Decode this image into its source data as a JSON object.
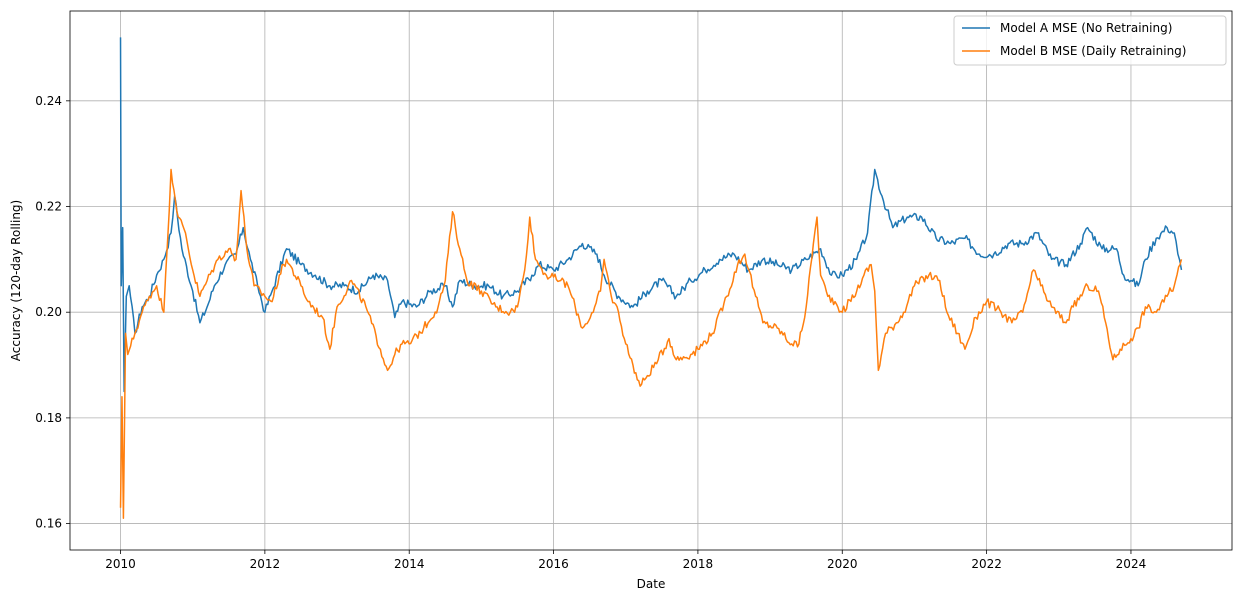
{
  "chart_data": {
    "type": "line",
    "title": "",
    "xlabel": "Date",
    "ylabel": "Accuracy (120-day Rolling)",
    "xlim": [
      2009.3,
      2025.4
    ],
    "ylim": [
      0.155,
      0.257
    ],
    "xticks": [
      "2010",
      "2012",
      "2014",
      "2016",
      "2018",
      "2020",
      "2022",
      "2024"
    ],
    "yticks": [
      "0.16",
      "0.18",
      "0.20",
      "0.22",
      "0.24"
    ],
    "grid": true,
    "legend_position": "top-right",
    "series": [
      {
        "name": "Model A MSE (No Retraining)",
        "color": "#1f77b4",
        "points": [
          [
            2010.0,
            0.252
          ],
          [
            2010.01,
            0.205
          ],
          [
            2010.03,
            0.216
          ],
          [
            2010.05,
            0.185
          ],
          [
            2010.08,
            0.203
          ],
          [
            2010.12,
            0.205
          ],
          [
            2010.2,
            0.196
          ],
          [
            2010.3,
            0.201
          ],
          [
            2010.4,
            0.203
          ],
          [
            2010.5,
            0.207
          ],
          [
            2010.6,
            0.21
          ],
          [
            2010.7,
            0.215
          ],
          [
            2010.75,
            0.222
          ],
          [
            2010.85,
            0.212
          ],
          [
            2011.0,
            0.204
          ],
          [
            2011.1,
            0.198
          ],
          [
            2011.2,
            0.201
          ],
          [
            2011.3,
            0.205
          ],
          [
            2011.45,
            0.209
          ],
          [
            2011.6,
            0.211
          ],
          [
            2011.7,
            0.216
          ],
          [
            2011.8,
            0.21
          ],
          [
            2011.9,
            0.205
          ],
          [
            2012.0,
            0.2
          ],
          [
            2012.1,
            0.204
          ],
          [
            2012.3,
            0.212
          ],
          [
            2012.5,
            0.209
          ],
          [
            2012.7,
            0.207
          ],
          [
            2012.9,
            0.205
          ],
          [
            2013.1,
            0.205
          ],
          [
            2013.3,
            0.204
          ],
          [
            2013.5,
            0.207
          ],
          [
            2013.7,
            0.206
          ],
          [
            2013.8,
            0.199
          ],
          [
            2013.9,
            0.202
          ],
          [
            2014.1,
            0.201
          ],
          [
            2014.3,
            0.204
          ],
          [
            2014.5,
            0.205
          ],
          [
            2014.6,
            0.201
          ],
          [
            2014.7,
            0.206
          ],
          [
            2014.9,
            0.205
          ],
          [
            2015.1,
            0.205
          ],
          [
            2015.3,
            0.203
          ],
          [
            2015.5,
            0.204
          ],
          [
            2015.7,
            0.207
          ],
          [
            2015.8,
            0.209
          ],
          [
            2016.0,
            0.208
          ],
          [
            2016.2,
            0.21
          ],
          [
            2016.4,
            0.213
          ],
          [
            2016.6,
            0.211
          ],
          [
            2016.7,
            0.207
          ],
          [
            2016.9,
            0.203
          ],
          [
            2017.1,
            0.201
          ],
          [
            2017.3,
            0.204
          ],
          [
            2017.5,
            0.206
          ],
          [
            2017.7,
            0.203
          ],
          [
            2017.9,
            0.206
          ],
          [
            2018.1,
            0.208
          ],
          [
            2018.3,
            0.21
          ],
          [
            2018.5,
            0.211
          ],
          [
            2018.7,
            0.208
          ],
          [
            2018.9,
            0.21
          ],
          [
            2019.1,
            0.209
          ],
          [
            2019.3,
            0.208
          ],
          [
            2019.5,
            0.21
          ],
          [
            2019.7,
            0.212
          ],
          [
            2019.85,
            0.207
          ],
          [
            2020.0,
            0.207
          ],
          [
            2020.2,
            0.21
          ],
          [
            2020.35,
            0.215
          ],
          [
            2020.45,
            0.227
          ],
          [
            2020.55,
            0.222
          ],
          [
            2020.7,
            0.216
          ],
          [
            2020.9,
            0.218
          ],
          [
            2021.1,
            0.218
          ],
          [
            2021.3,
            0.214
          ],
          [
            2021.5,
            0.213
          ],
          [
            2021.7,
            0.214
          ],
          [
            2021.9,
            0.211
          ],
          [
            2022.1,
            0.211
          ],
          [
            2022.3,
            0.213
          ],
          [
            2022.5,
            0.213
          ],
          [
            2022.7,
            0.215
          ],
          [
            2022.9,
            0.21
          ],
          [
            2023.1,
            0.209
          ],
          [
            2023.3,
            0.213
          ],
          [
            2023.4,
            0.216
          ],
          [
            2023.6,
            0.212
          ],
          [
            2023.8,
            0.212
          ],
          [
            2023.9,
            0.207
          ],
          [
            2024.0,
            0.206
          ],
          [
            2024.1,
            0.205
          ],
          [
            2024.2,
            0.21
          ],
          [
            2024.35,
            0.214
          ],
          [
            2024.5,
            0.216
          ],
          [
            2024.6,
            0.215
          ],
          [
            2024.65,
            0.211
          ],
          [
            2024.7,
            0.208
          ]
        ]
      },
      {
        "name": "Model B MSE (Daily Retraining)",
        "color": "#ff7f0e",
        "points": [
          [
            2010.0,
            0.163
          ],
          [
            2010.02,
            0.184
          ],
          [
            2010.04,
            0.161
          ],
          [
            2010.07,
            0.196
          ],
          [
            2010.1,
            0.192
          ],
          [
            2010.2,
            0.196
          ],
          [
            2010.3,
            0.2
          ],
          [
            2010.4,
            0.203
          ],
          [
            2010.5,
            0.205
          ],
          [
            2010.6,
            0.2
          ],
          [
            2010.65,
            0.213
          ],
          [
            2010.7,
            0.227
          ],
          [
            2010.8,
            0.218
          ],
          [
            2010.9,
            0.215
          ],
          [
            2011.0,
            0.208
          ],
          [
            2011.1,
            0.203
          ],
          [
            2011.2,
            0.206
          ],
          [
            2011.35,
            0.21
          ],
          [
            2011.5,
            0.212
          ],
          [
            2011.6,
            0.21
          ],
          [
            2011.67,
            0.223
          ],
          [
            2011.75,
            0.212
          ],
          [
            2011.85,
            0.205
          ],
          [
            2012.0,
            0.203
          ],
          [
            2012.1,
            0.202
          ],
          [
            2012.2,
            0.207
          ],
          [
            2012.3,
            0.21
          ],
          [
            2012.5,
            0.205
          ],
          [
            2012.6,
            0.202
          ],
          [
            2012.8,
            0.199
          ],
          [
            2012.9,
            0.193
          ],
          [
            2013.0,
            0.201
          ],
          [
            2013.2,
            0.206
          ],
          [
            2013.4,
            0.201
          ],
          [
            2013.6,
            0.193
          ],
          [
            2013.7,
            0.189
          ],
          [
            2013.8,
            0.192
          ],
          [
            2013.9,
            0.194
          ],
          [
            2014.0,
            0.194
          ],
          [
            2014.2,
            0.197
          ],
          [
            2014.4,
            0.201
          ],
          [
            2014.5,
            0.206
          ],
          [
            2014.6,
            0.219
          ],
          [
            2014.7,
            0.212
          ],
          [
            2014.8,
            0.206
          ],
          [
            2015.0,
            0.204
          ],
          [
            2015.2,
            0.201
          ],
          [
            2015.4,
            0.2
          ],
          [
            2015.5,
            0.201
          ],
          [
            2015.6,
            0.208
          ],
          [
            2015.67,
            0.218
          ],
          [
            2015.75,
            0.21
          ],
          [
            2015.9,
            0.207
          ],
          [
            2016.1,
            0.206
          ],
          [
            2016.2,
            0.205
          ],
          [
            2016.3,
            0.201
          ],
          [
            2016.4,
            0.197
          ],
          [
            2016.55,
            0.2
          ],
          [
            2016.65,
            0.204
          ],
          [
            2016.7,
            0.21
          ],
          [
            2016.8,
            0.203
          ],
          [
            2016.9,
            0.2
          ],
          [
            2017.0,
            0.194
          ],
          [
            2017.1,
            0.19
          ],
          [
            2017.2,
            0.186
          ],
          [
            2017.3,
            0.188
          ],
          [
            2017.45,
            0.191
          ],
          [
            2017.6,
            0.195
          ],
          [
            2017.7,
            0.191
          ],
          [
            2017.9,
            0.192
          ],
          [
            2018.0,
            0.193
          ],
          [
            2018.2,
            0.196
          ],
          [
            2018.4,
            0.203
          ],
          [
            2018.55,
            0.209
          ],
          [
            2018.65,
            0.211
          ],
          [
            2018.8,
            0.203
          ],
          [
            2018.9,
            0.198
          ],
          [
            2019.1,
            0.197
          ],
          [
            2019.3,
            0.194
          ],
          [
            2019.4,
            0.194
          ],
          [
            2019.5,
            0.201
          ],
          [
            2019.6,
            0.213
          ],
          [
            2019.65,
            0.218
          ],
          [
            2019.7,
            0.207
          ],
          [
            2019.8,
            0.203
          ],
          [
            2019.9,
            0.202
          ],
          [
            2020.0,
            0.2
          ],
          [
            2020.2,
            0.204
          ],
          [
            2020.3,
            0.207
          ],
          [
            2020.4,
            0.209
          ],
          [
            2020.45,
            0.204
          ],
          [
            2020.5,
            0.189
          ],
          [
            2020.6,
            0.196
          ],
          [
            2020.75,
            0.198
          ],
          [
            2020.85,
            0.2
          ],
          [
            2021.0,
            0.205
          ],
          [
            2021.2,
            0.207
          ],
          [
            2021.35,
            0.206
          ],
          [
            2021.45,
            0.2
          ],
          [
            2021.6,
            0.196
          ],
          [
            2021.7,
            0.193
          ],
          [
            2021.85,
            0.199
          ],
          [
            2022.0,
            0.202
          ],
          [
            2022.2,
            0.2
          ],
          [
            2022.35,
            0.198
          ],
          [
            2022.5,
            0.2
          ],
          [
            2022.65,
            0.208
          ],
          [
            2022.75,
            0.205
          ],
          [
            2022.9,
            0.201
          ],
          [
            2023.1,
            0.198
          ],
          [
            2023.2,
            0.201
          ],
          [
            2023.4,
            0.205
          ],
          [
            2023.55,
            0.204
          ],
          [
            2023.65,
            0.198
          ],
          [
            2023.75,
            0.191
          ],
          [
            2023.85,
            0.193
          ],
          [
            2024.0,
            0.195
          ],
          [
            2024.1,
            0.197
          ],
          [
            2024.2,
            0.201
          ],
          [
            2024.35,
            0.2
          ],
          [
            2024.5,
            0.203
          ],
          [
            2024.6,
            0.205
          ],
          [
            2024.7,
            0.21
          ]
        ]
      }
    ]
  }
}
